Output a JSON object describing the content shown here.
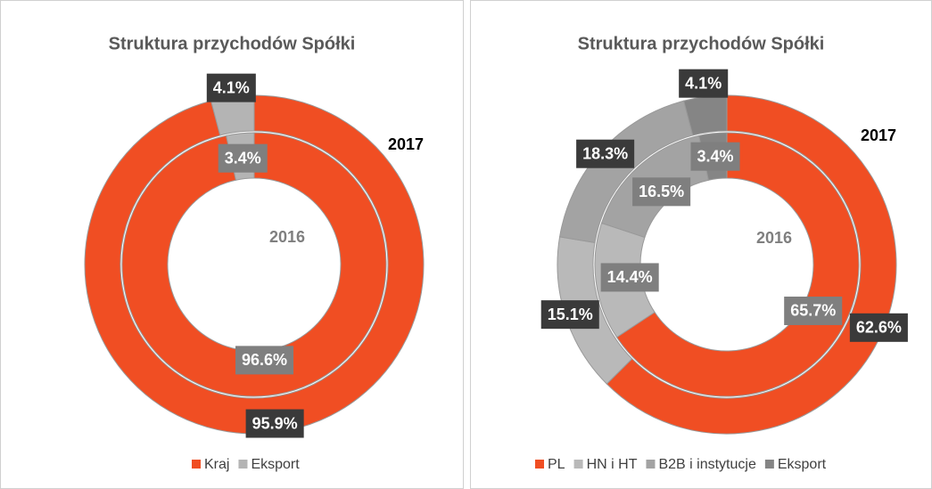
{
  "chart_data": [
    {
      "type": "doughnut",
      "title": "Struktura przychodów Spółki",
      "categories": [
        "Kraj",
        "Eksport"
      ],
      "colors": [
        "#f04e23",
        "#b4b4b4"
      ],
      "series": [
        {
          "name": "2017",
          "values": [
            95.9,
            4.1
          ],
          "value_labels": [
            "95.9%",
            "4.1%"
          ]
        },
        {
          "name": "2016",
          "values": [
            96.6,
            3.4
          ],
          "value_labels": [
            "96.6%",
            "3.4%"
          ]
        }
      ]
    },
    {
      "type": "doughnut",
      "title": "Struktura przychodów Spółki",
      "categories": [
        "PL",
        "HN i HT",
        "B2B i instytucje",
        "Eksport"
      ],
      "colors": [
        "#f04e23",
        "#b9b9b9",
        "#a3a3a3",
        "#858585"
      ],
      "series": [
        {
          "name": "2017",
          "values": [
            62.6,
            15.1,
            18.3,
            4.1
          ],
          "value_labels": [
            "62.6%",
            "15.1%",
            "18.3%",
            "4.1%"
          ]
        },
        {
          "name": "2016",
          "values": [
            65.7,
            14.4,
            16.5,
            3.4
          ],
          "value_labels": [
            "65.7%",
            "14.4%",
            "16.5%",
            "3.4%"
          ]
        }
      ]
    }
  ]
}
